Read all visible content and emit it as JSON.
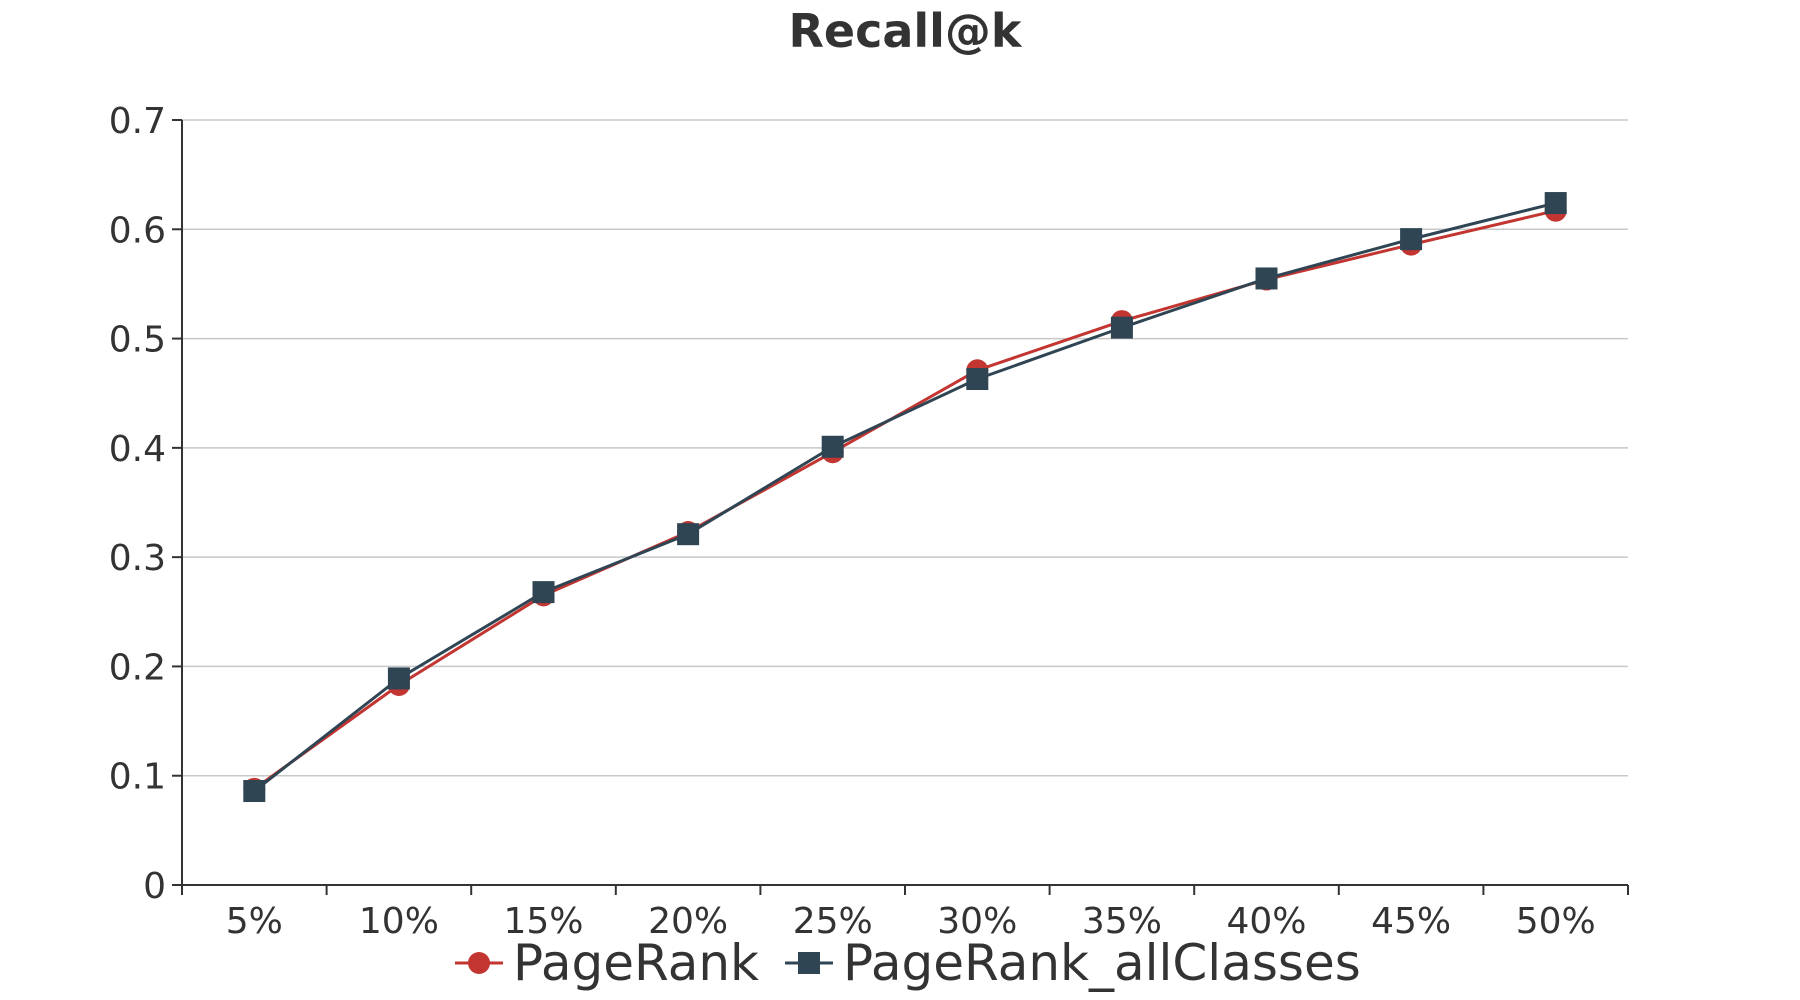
{
  "chart_data": {
    "type": "line",
    "title": "Recall@k",
    "xlabel": "",
    "ylabel": "",
    "categories": [
      "5%",
      "10%",
      "15%",
      "20%",
      "25%",
      "30%",
      "35%",
      "40%",
      "45%",
      "50%"
    ],
    "ylim": [
      0,
      0.7
    ],
    "yticks": [
      "0",
      "0.1",
      "0.2",
      "0.3",
      "0.4",
      "0.5",
      "0.6",
      "0.7"
    ],
    "grid": "horizontal",
    "legend_position": "bottom",
    "series": [
      {
        "name": "PageRank",
        "marker": "circle",
        "color": "#c23531",
        "values": [
          0.088,
          0.183,
          0.265,
          0.323,
          0.396,
          0.471,
          0.516,
          0.554,
          0.586,
          0.617
        ]
      },
      {
        "name": "PageRank_allClasses",
        "marker": "square",
        "color": "#2f4554",
        "values": [
          0.086,
          0.189,
          0.268,
          0.321,
          0.401,
          0.463,
          0.51,
          0.555,
          0.591,
          0.624
        ]
      }
    ]
  }
}
